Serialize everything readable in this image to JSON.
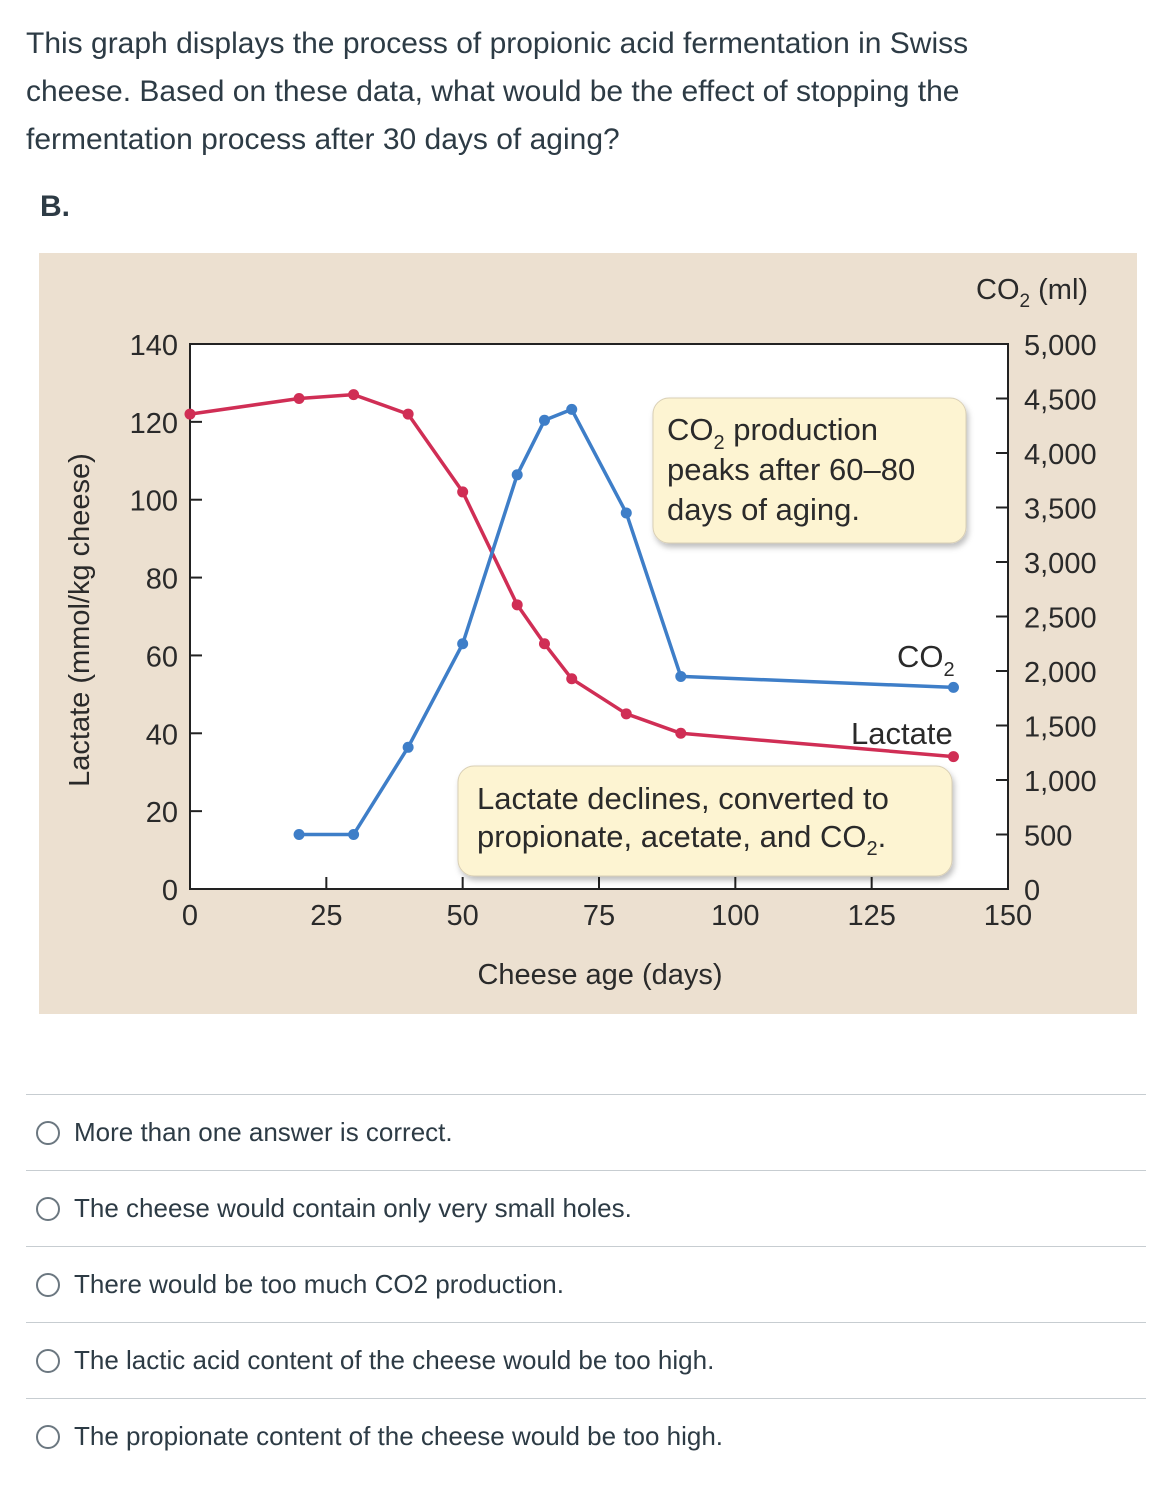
{
  "question": {
    "line1": "This graph displays the process of propionic acid fermentation in Swiss",
    "line2": "cheese. Based on these data, what would be the effect of stopping the",
    "line3": "fermentation process after 30 days of aging?"
  },
  "part_label": "B.",
  "colors": {
    "background": "#ece0d0",
    "lactate": "#d02e55",
    "co2": "#3e7ec8",
    "callout": "#fdf4d2"
  },
  "chart_data": {
    "type": "line",
    "x_axis": {
      "label": "Cheese age (days)",
      "range": [
        0,
        150
      ],
      "ticks": [
        "0",
        "25",
        "50",
        "75",
        "100",
        "125",
        "150"
      ]
    },
    "y_axis_left": {
      "label": "Lactate (mmol/kg cheese)",
      "range": [
        0,
        140
      ],
      "ticks": [
        "0",
        "20",
        "40",
        "60",
        "80",
        "100",
        "120",
        "140"
      ]
    },
    "y_axis_right": {
      "label_main": "CO",
      "label_sub": "2",
      "label_unit": " (ml)",
      "range": [
        0,
        5000
      ],
      "ticks": [
        "0",
        "500",
        "1,000",
        "1,500",
        "2,000",
        "2,500",
        "3,000",
        "3,500",
        "4,000",
        "4,500",
        "5,000"
      ]
    },
    "series": [
      {
        "name": "Lactate",
        "axis": "left",
        "x": [
          0,
          20,
          30,
          40,
          50,
          60,
          65,
          70,
          80,
          90,
          140
        ],
        "y": [
          122,
          126,
          127,
          122,
          102,
          73,
          63,
          54,
          45,
          40,
          34
        ]
      },
      {
        "name": "CO2",
        "axis": "right",
        "x": [
          20,
          30,
          40,
          50,
          60,
          65,
          70,
          80,
          90,
          140
        ],
        "y": [
          500,
          500,
          1300,
          2250,
          3800,
          4300,
          4400,
          3450,
          1950,
          1850
        ]
      }
    ],
    "series_labels": {
      "co2_main": "CO",
      "co2_sub": "2",
      "lactate": "Lactate"
    },
    "annotations": {
      "peak": {
        "line1_main": "CO",
        "line1_sub": "2",
        "line1_rest": " production",
        "line2": "peaks after 60–80",
        "line3": "days of aging."
      },
      "decline": {
        "line1": "Lactate declines, converted to",
        "line2_main": "propionate, acetate, and CO",
        "line2_sub": "2",
        "line2_rest": "."
      }
    }
  },
  "choices": [
    "More than one answer is correct.",
    "The cheese would contain only very small holes.",
    "There would be too much CO2 production.",
    "The lactic acid content of the cheese would be too high.",
    "The propionate content of the cheese would be too high."
  ]
}
